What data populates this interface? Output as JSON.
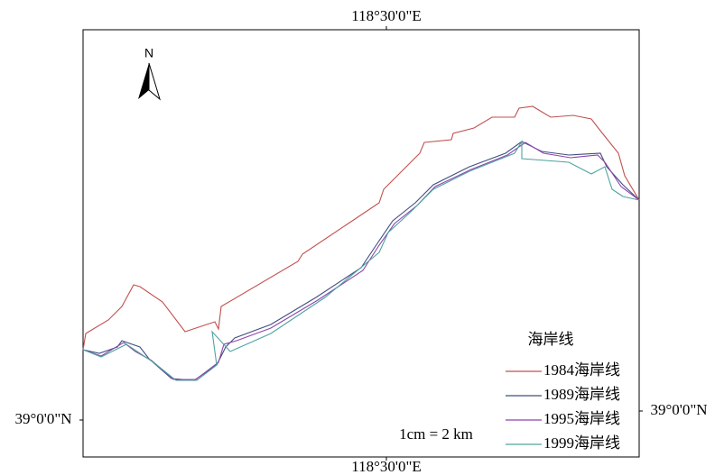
{
  "map": {
    "top_label": "118°30'0\"E",
    "bottom_label": "118°30'0\"E",
    "left_label": "39°0'0\"N",
    "right_label": "39°0'0\"N",
    "north": "N",
    "scale": "1cm = 2 km",
    "legend": {
      "title": "海岸线",
      "items": [
        {
          "name": "1984海岸线",
          "color": "#c0504d"
        },
        {
          "name": "1989海岸线",
          "color": "#3f4f7f"
        },
        {
          "name": "1995海岸线",
          "color": "#8e44ad"
        },
        {
          "name": "1999海岸线",
          "color": "#4fa3a0"
        }
      ]
    }
  }
}
